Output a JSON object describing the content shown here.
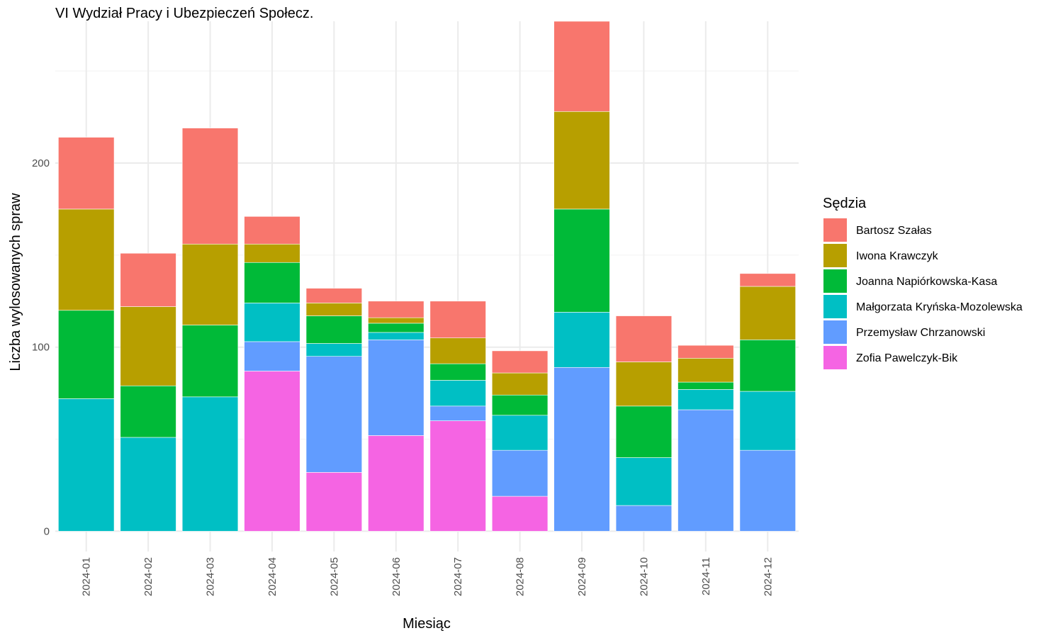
{
  "chart_data": {
    "type": "bar",
    "stacked": true,
    "title": "VI Wydział Pracy i Ubezpieczeń Społecz.",
    "xlabel": "Miesiąc",
    "ylabel": "Liczba wylosowanych spraw",
    "ylim": [
      -11,
      277
    ],
    "yticks": [
      0,
      100,
      200
    ],
    "grid": true,
    "legend_title": "Sędzia",
    "legend_position": "right",
    "categories": [
      "2024-01",
      "2024-02",
      "2024-03",
      "2024-04",
      "2024-05",
      "2024-06",
      "2024-07",
      "2024-08",
      "2024-09",
      "2024-10",
      "2024-11",
      "2024-12"
    ],
    "series": [
      {
        "name": "Zofia Pawelczyk-Bik",
        "color": "#F564E3",
        "values": [
          0,
          0,
          0,
          87,
          32,
          52,
          60,
          19,
          0,
          0,
          0,
          0
        ]
      },
      {
        "name": "Przemysław Chrzanowski",
        "color": "#619CFF",
        "values": [
          0,
          0,
          0,
          16,
          63,
          52,
          8,
          25,
          89,
          14,
          66,
          44
        ]
      },
      {
        "name": "Małgorzata Kryńska-Mozolewska",
        "color": "#00BFC4",
        "values": [
          72,
          51,
          73,
          21,
          7,
          4,
          14,
          19,
          30,
          26,
          11,
          32
        ]
      },
      {
        "name": "Joanna Napiórkowska-Kasa",
        "color": "#00BA38",
        "values": [
          48,
          28,
          39,
          22,
          15,
          5,
          9,
          11,
          56,
          28,
          4,
          28
        ]
      },
      {
        "name": "Iwona Krawczyk",
        "color": "#B79F00",
        "values": [
          55,
          43,
          44,
          10,
          7,
          3,
          14,
          12,
          53,
          24,
          13,
          29
        ]
      },
      {
        "name": "Bartosz Szałas",
        "color": "#F8766D",
        "values": [
          39,
          29,
          63,
          15,
          8,
          9,
          20,
          12,
          49,
          25,
          7,
          7
        ]
      }
    ],
    "legend_order": [
      "Bartosz Szałas",
      "Iwona Krawczyk",
      "Joanna Napiórkowska-Kasa",
      "Małgorzata Kryńska-Mozolewska",
      "Przemysław Chrzanowski",
      "Zofia Pawelczyk-Bik"
    ]
  }
}
